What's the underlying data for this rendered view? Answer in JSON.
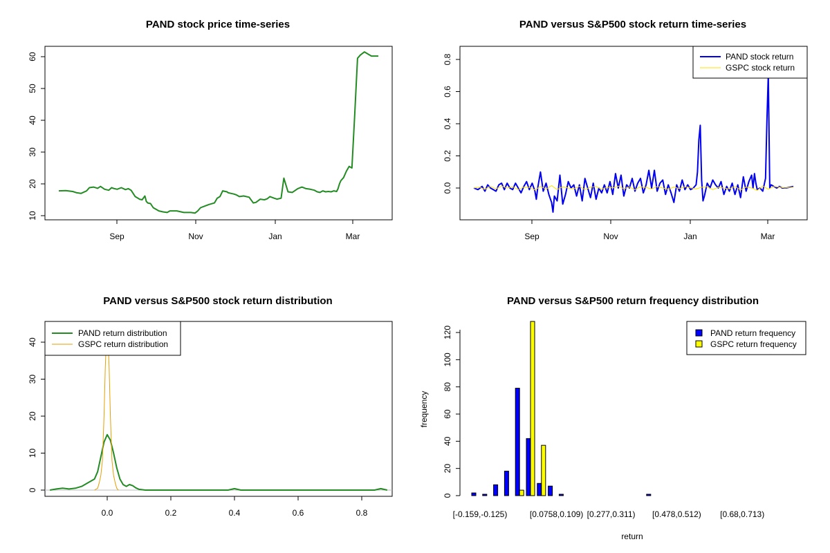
{
  "chart_data": [
    {
      "type": "line",
      "title": "PAND stock price time-series",
      "x_ticks": [
        "Sep",
        "Nov",
        "Jan",
        "Mar"
      ],
      "y_ticks": [
        10,
        20,
        30,
        40,
        50,
        60
      ],
      "ylim": [
        10,
        62
      ],
      "x_unit": "days",
      "xlim": [
        -3,
        235
      ],
      "color": "#228B22",
      "series": [
        {
          "x": [
            0,
            5,
            10,
            13,
            16,
            20,
            22,
            25,
            28,
            30,
            33,
            36,
            38,
            40,
            42,
            45,
            48,
            50,
            52,
            55,
            57,
            58,
            60,
            62,
            63,
            64,
            66,
            68,
            70,
            72,
            75,
            78,
            80,
            85,
            88,
            90,
            92,
            95,
            98,
            100,
            102,
            105,
            108,
            112,
            114,
            116,
            118,
            121,
            122,
            124,
            126,
            128,
            130,
            133,
            137,
            140,
            142,
            145,
            148,
            150,
            152,
            155,
            157,
            160,
            162,
            165,
            168,
            172,
            175,
            178,
            181,
            184,
            186,
            188,
            190,
            192,
            194,
            196,
            198,
            200,
            201,
            202,
            203,
            205,
            207,
            209,
            211,
            213,
            215,
            217,
            220,
            225,
            230
          ],
          "y": [
            17.8,
            17.9,
            17.6,
            17.2,
            17.0,
            17.8,
            18.8,
            19.0,
            18.6,
            19.2,
            18.3,
            18.0,
            18.8,
            18.5,
            18.3,
            18.8,
            18.2,
            18.5,
            18.0,
            16.0,
            15.5,
            15.2,
            15.0,
            16.2,
            14.5,
            14.0,
            13.8,
            12.5,
            12.0,
            11.5,
            11.2,
            11.0,
            11.5,
            11.5,
            11.2,
            11.0,
            11.0,
            11.0,
            10.8,
            11.5,
            12.5,
            13.0,
            13.5,
            14.0,
            15.5,
            16.0,
            17.8,
            17.5,
            17.2,
            17.0,
            16.8,
            16.5,
            16.0,
            16.2,
            15.8,
            14.0,
            14.2,
            15.2,
            15.0,
            15.3,
            16.0,
            15.5,
            15.2,
            15.5,
            21.8,
            17.5,
            17.3,
            18.5,
            19.0,
            18.5,
            18.3,
            18.0,
            17.5,
            17.3,
            17.8,
            17.5,
            17.6,
            17.5,
            17.8,
            17.6,
            18.5,
            20.0,
            21.0,
            22.0,
            24.0,
            25.5,
            25.0,
            42.0,
            59.5,
            60.5,
            61.5,
            60.2,
            60.2
          ]
        }
      ]
    },
    {
      "type": "line",
      "title": "PAND versus S&P500 stock return time-series",
      "x_ticks": [
        "Sep",
        "Nov",
        "Jan",
        "Mar"
      ],
      "y_ticks": [
        "0.0",
        "0.2",
        "0.4",
        "0.6",
        "0.8"
      ],
      "ylim": [
        -0.18,
        0.88
      ],
      "x_unit": "days",
      "xlim": [
        -3,
        235
      ],
      "legend": "top-right",
      "series": [
        {
          "name": "PAND stock return",
          "color": "#0000EE",
          "x": [
            0,
            3,
            6,
            8,
            10,
            12,
            14,
            16,
            18,
            20,
            22,
            24,
            26,
            28,
            30,
            32,
            34,
            36,
            38,
            40,
            42,
            44,
            45,
            46,
            48,
            50,
            52,
            54,
            56,
            57,
            58,
            60,
            62,
            64,
            66,
            68,
            70,
            72,
            74,
            76,
            78,
            80,
            82,
            84,
            86,
            88,
            90,
            92,
            94,
            96,
            98,
            100,
            102,
            104,
            106,
            108,
            110,
            112,
            114,
            116,
            118,
            120,
            122,
            124,
            126,
            128,
            130,
            132,
            134,
            136,
            138,
            140,
            142,
            144,
            146,
            148,
            150,
            152,
            154,
            156,
            158,
            160,
            161,
            162,
            163,
            164,
            165,
            166,
            168,
            170,
            172,
            174,
            176,
            178,
            180,
            182,
            184,
            186,
            188,
            190,
            192,
            194,
            196,
            198,
            200,
            201,
            202,
            203,
            204,
            206,
            208,
            210,
            211,
            212,
            213,
            214,
            216,
            218,
            220,
            222,
            225,
            230
          ],
          "y": [
            0.0,
            -0.01,
            0.01,
            -0.02,
            0.02,
            0.0,
            -0.01,
            -0.02,
            0.02,
            0.03,
            -0.01,
            0.03,
            0.0,
            -0.01,
            0.03,
            0.0,
            -0.03,
            0.01,
            0.04,
            -0.01,
            0.03,
            -0.02,
            -0.07,
            0.0,
            0.1,
            -0.02,
            0.03,
            -0.04,
            -0.09,
            -0.15,
            -0.05,
            -0.08,
            0.08,
            -0.1,
            -0.04,
            0.04,
            0.0,
            0.02,
            -0.05,
            0.02,
            -0.08,
            0.06,
            0.0,
            -0.06,
            0.03,
            -0.07,
            0.0,
            -0.03,
            0.02,
            -0.03,
            0.04,
            -0.04,
            0.09,
            0.0,
            0.08,
            -0.05,
            0.02,
            0.0,
            0.06,
            -0.02,
            0.03,
            0.06,
            -0.03,
            0.02,
            0.11,
            0.0,
            0.11,
            -0.02,
            0.03,
            0.05,
            -0.04,
            0.02,
            -0.03,
            -0.09,
            0.02,
            -0.02,
            0.05,
            -0.01,
            0.02,
            -0.01,
            0.0,
            0.02,
            0.1,
            0.3,
            0.39,
            0.05,
            -0.08,
            -0.05,
            0.03,
            0.0,
            0.05,
            0.02,
            0.0,
            0.04,
            -0.04,
            0.01,
            -0.02,
            0.03,
            -0.04,
            0.02,
            -0.06,
            0.07,
            -0.02,
            0.04,
            0.08,
            0.0,
            0.09,
            0.03,
            -0.01,
            0.0,
            -0.02,
            0.06,
            0.42,
            0.71,
            0.0,
            0.02,
            0.01,
            0.0,
            0.01,
            0.0,
            0.0,
            0.01
          ]
        },
        {
          "name": "GSPC stock return",
          "color": "#FFE000",
          "x": [
            0,
            4,
            8,
            12,
            16,
            20,
            24,
            28,
            32,
            36,
            40,
            44,
            48,
            52,
            56,
            60,
            64,
            68,
            72,
            76,
            80,
            84,
            88,
            92,
            96,
            100,
            104,
            108,
            112,
            116,
            120,
            124,
            128,
            132,
            136,
            140,
            144,
            148,
            152,
            156,
            160,
            164,
            168,
            172,
            176,
            180,
            184,
            188,
            192,
            196,
            200,
            204,
            208,
            212,
            216,
            220,
            224,
            230
          ],
          "y": [
            0.0,
            0.005,
            -0.008,
            0.01,
            -0.005,
            0.012,
            0.0,
            0.008,
            -0.01,
            0.006,
            0.004,
            -0.012,
            0.01,
            -0.006,
            0.015,
            -0.01,
            0.008,
            0.0,
            -0.005,
            0.01,
            -0.01,
            0.006,
            0.01,
            -0.008,
            0.005,
            0.0,
            0.012,
            -0.004,
            0.006,
            -0.01,
            0.008,
            0.004,
            -0.006,
            0.01,
            0.0,
            -0.008,
            0.006,
            -0.004,
            0.008,
            0.002,
            -0.006,
            0.005,
            0.008,
            -0.01,
            0.004,
            0.0,
            -0.005,
            0.01,
            -0.012,
            0.006,
            0.0,
            -0.015,
            0.012,
            -0.008,
            0.01,
            0.005,
            0.0,
            0.005
          ]
        }
      ]
    },
    {
      "type": "line",
      "title": "PAND versus S&P500 stock return distribution",
      "x_ticks": [
        "0.0",
        "0.2",
        "0.4",
        "0.6",
        "0.8"
      ],
      "y_ticks": [
        0,
        10,
        20,
        30,
        40
      ],
      "xlim": [
        -0.19,
        0.89
      ],
      "ylim": [
        -1.5,
        46
      ],
      "legend": "top-left",
      "series": [
        {
          "name": "PAND return distribution",
          "color": "#228B22",
          "x": [
            -0.18,
            -0.16,
            -0.14,
            -0.12,
            -0.1,
            -0.08,
            -0.06,
            -0.05,
            -0.04,
            -0.03,
            -0.02,
            -0.01,
            0.0,
            0.01,
            0.02,
            0.03,
            0.04,
            0.05,
            0.06,
            0.07,
            0.08,
            0.09,
            0.1,
            0.12,
            0.14,
            0.2,
            0.3,
            0.38,
            0.4,
            0.42,
            0.5,
            0.6,
            0.7,
            0.8,
            0.84,
            0.86,
            0.88
          ],
          "y": [
            0.0,
            0.3,
            0.5,
            0.3,
            0.5,
            1.0,
            2.0,
            2.5,
            3.0,
            5.0,
            9.0,
            13.0,
            15.0,
            13.5,
            10.0,
            6.0,
            3.0,
            1.5,
            1.0,
            1.5,
            1.2,
            0.6,
            0.2,
            0.0,
            0.0,
            0.0,
            0.0,
            0.0,
            0.4,
            0.0,
            0.0,
            0.0,
            0.0,
            0.0,
            0.0,
            0.4,
            0.0
          ]
        },
        {
          "name": "GSPC return distribution",
          "color": "#E69F00",
          "x": [
            -0.04,
            -0.03,
            -0.025,
            -0.02,
            -0.015,
            -0.01,
            -0.006,
            -0.003,
            0.0,
            0.003,
            0.006,
            0.01,
            0.015,
            0.02,
            0.025,
            0.03,
            0.035
          ],
          "y": [
            0.0,
            0.5,
            2.0,
            4.0,
            8.0,
            20.0,
            33.0,
            40.0,
            46.0,
            40.0,
            33.0,
            20.0,
            8.0,
            4.0,
            2.0,
            0.5,
            0.0
          ]
        }
      ]
    },
    {
      "type": "bar",
      "title": "PAND versus S&P500 return frequency distribution",
      "xlabel": "return",
      "ylabel": "frequency",
      "y_ticks": [
        0,
        20,
        40,
        60,
        80,
        100,
        120
      ],
      "ylim": [
        0,
        128
      ],
      "x_tick_labels": [
        {
          "bin": 0,
          "label": "[-0.159,-0.125)"
        },
        {
          "bin": 7,
          "label": "[0.0758,0.109)"
        },
        {
          "bin": 12,
          "label": "[0.277,0.311)"
        },
        {
          "bin": 18,
          "label": "[0.478,0.512)"
        },
        {
          "bin": 24,
          "label": "[0.68,0.713)"
        }
      ],
      "legend": "top-right",
      "series": [
        {
          "name": "PAND return frequency",
          "color": "#0000FF",
          "values": [
            2,
            1,
            8,
            18,
            79,
            42,
            9,
            7,
            1,
            0,
            0,
            0,
            0,
            0,
            0,
            0,
            1,
            0,
            0,
            0,
            0,
            0,
            0,
            0,
            0,
            0,
            0,
            0,
            0,
            0
          ]
        },
        {
          "name": "GSPC return frequency",
          "color": "#FFFF00",
          "values": [
            0,
            0,
            0,
            0,
            4,
            132,
            37,
            0,
            0,
            0,
            0,
            0,
            0,
            0,
            0,
            0,
            0,
            0,
            0,
            0,
            0,
            0,
            0,
            0,
            0,
            0,
            0,
            0,
            0,
            0
          ]
        }
      ]
    }
  ]
}
